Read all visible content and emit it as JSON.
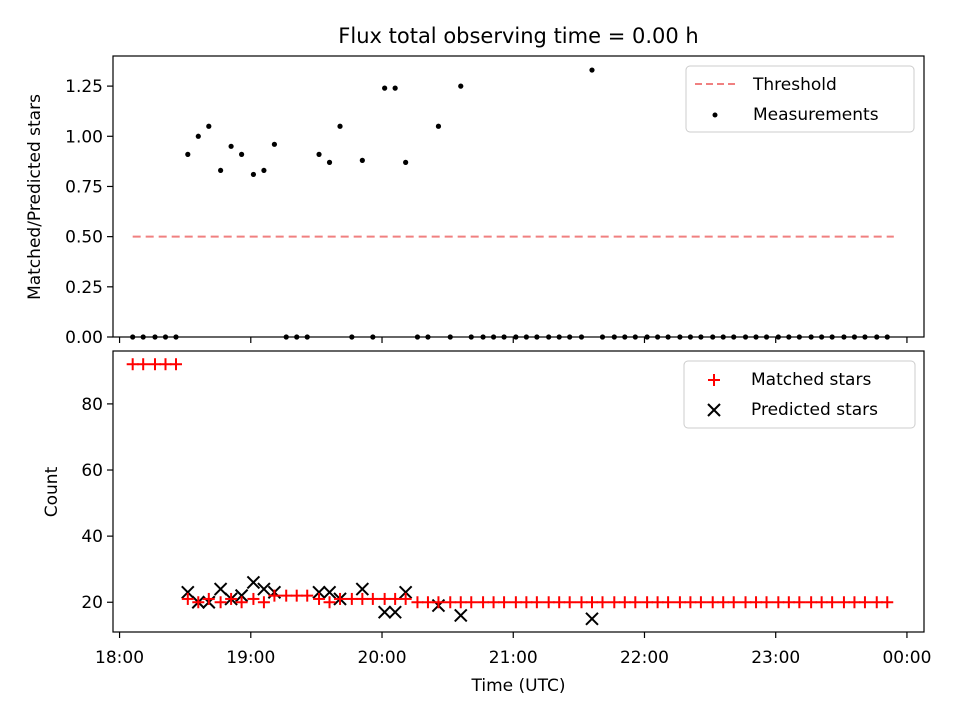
{
  "chart_data": [
    {
      "type": "scatter",
      "title": "Flux total observing time = 0.00 h",
      "xlabel": "",
      "ylabel": "Matched/Predicted stars",
      "xlim": [
        17.95,
        24.13
      ],
      "ylim": [
        0,
        1.4
      ],
      "x_ticks": [
        18,
        19,
        20,
        21,
        22,
        23,
        24
      ],
      "y_ticks": [
        0.0,
        0.25,
        0.5,
        0.75,
        1.0,
        1.25
      ],
      "y_tick_labels": [
        "0.00",
        "0.25",
        "0.50",
        "0.75",
        "1.00",
        "1.25"
      ],
      "legend_position": "top-right",
      "threshold": {
        "name": "Threshold",
        "value": 0.5,
        "x_start": 18.1,
        "x_end": 23.9,
        "color": "#f08080"
      },
      "series": [
        {
          "name": "Measurements",
          "color": "#000000",
          "x": [
            18.1,
            18.18,
            18.27,
            18.35,
            18.43,
            18.52,
            18.6,
            18.68,
            18.77,
            18.85,
            18.93,
            19.02,
            19.1,
            19.18,
            19.27,
            19.35,
            19.43,
            19.52,
            19.6,
            19.68,
            19.77,
            19.85,
            19.93,
            20.02,
            20.1,
            20.18,
            20.27,
            20.35,
            20.43,
            20.52,
            20.6,
            20.68,
            20.77,
            20.85,
            20.93,
            21.02,
            21.1,
            21.18,
            21.27,
            21.35,
            21.43,
            21.52,
            21.6,
            21.68,
            21.77,
            21.85,
            21.93,
            22.02,
            22.1,
            22.18,
            22.27,
            22.35,
            22.43,
            22.52,
            22.6,
            22.68,
            22.77,
            22.85,
            22.93,
            23.02,
            23.1,
            23.18,
            23.27,
            23.35,
            23.43,
            23.52,
            23.6,
            23.68,
            23.77,
            23.85
          ],
          "y": [
            0,
            0,
            0,
            0,
            0,
            0.91,
            1.0,
            1.05,
            0.83,
            0.95,
            0.91,
            0.81,
            0.83,
            0.96,
            0,
            0,
            0,
            0.91,
            0.87,
            1.05,
            0,
            0.88,
            0,
            1.24,
            1.24,
            0.87,
            0,
            0,
            1.05,
            0,
            1.25,
            0,
            0,
            0,
            0,
            0,
            0,
            0,
            0,
            0,
            0,
            0,
            1.33,
            0,
            0,
            0,
            0,
            0,
            0,
            0,
            0,
            0,
            0,
            0,
            0,
            0,
            0,
            0,
            0,
            0,
            0,
            0,
            0,
            0,
            0,
            0,
            0,
            0,
            0,
            0
          ]
        }
      ]
    },
    {
      "type": "scatter",
      "title": "",
      "xlabel": "Time (UTC)",
      "ylabel": "Count",
      "xlim": [
        17.95,
        24.13
      ],
      "ylim": [
        11,
        96
      ],
      "x_ticks": [
        18,
        19,
        20,
        21,
        22,
        23,
        24
      ],
      "x_tick_labels": [
        "18:00",
        "19:00",
        "20:00",
        "21:00",
        "22:00",
        "23:00",
        "00:00"
      ],
      "y_ticks": [
        20,
        40,
        60,
        80
      ],
      "legend_position": "top-right",
      "series": [
        {
          "name": "Matched stars",
          "marker": "plus",
          "color": "#ff0000",
          "x": [
            18.1,
            18.18,
            18.27,
            18.35,
            18.43,
            18.52,
            18.6,
            18.68,
            18.77,
            18.85,
            18.93,
            19.02,
            19.1,
            19.18,
            19.27,
            19.35,
            19.43,
            19.52,
            19.6,
            19.68,
            19.77,
            19.85,
            19.93,
            20.02,
            20.1,
            20.18,
            20.27,
            20.35,
            20.43,
            20.52,
            20.6,
            20.68,
            20.77,
            20.85,
            20.93,
            21.02,
            21.1,
            21.18,
            21.27,
            21.35,
            21.43,
            21.52,
            21.6,
            21.68,
            21.77,
            21.85,
            21.93,
            22.02,
            22.1,
            22.18,
            22.27,
            22.35,
            22.43,
            22.52,
            22.6,
            22.68,
            22.77,
            22.85,
            22.93,
            23.02,
            23.1,
            23.18,
            23.27,
            23.35,
            23.43,
            23.52,
            23.6,
            23.68,
            23.77,
            23.85
          ],
          "y": [
            92,
            92,
            92,
            92,
            92,
            21,
            20,
            21,
            20,
            21,
            20,
            21,
            20,
            22,
            22,
            22,
            22,
            21,
            20,
            21,
            21,
            21,
            21,
            21,
            21,
            21,
            20,
            20,
            20,
            20,
            20,
            20,
            20,
            20,
            20,
            20,
            20,
            20,
            20,
            20,
            20,
            20,
            20,
            20,
            20,
            20,
            20,
            20,
            20,
            20,
            20,
            20,
            20,
            20,
            20,
            20,
            20,
            20,
            20,
            20,
            20,
            20,
            20,
            20,
            20,
            20,
            20,
            20,
            20,
            20
          ]
        },
        {
          "name": "Predicted stars",
          "marker": "x",
          "color": "#000000",
          "x": [
            18.52,
            18.6,
            18.68,
            18.77,
            18.85,
            18.93,
            19.02,
            19.1,
            19.18,
            19.52,
            19.6,
            19.68,
            19.85,
            20.02,
            20.1,
            20.18,
            20.43,
            20.6,
            21.6
          ],
          "y": [
            23,
            20,
            20,
            24,
            21,
            22,
            26,
            24,
            23,
            23,
            23,
            21,
            24,
            17,
            17,
            23,
            19,
            16,
            15
          ]
        }
      ]
    }
  ]
}
